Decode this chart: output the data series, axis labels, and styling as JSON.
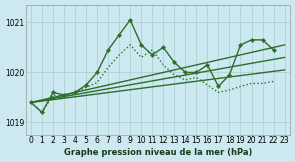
{
  "title": "Graphe pression niveau de la mer (hPa)",
  "background_color": "#cce8f0",
  "grid_color": "#aacccc",
  "line_color": "#2d6e2d",
  "ylim": [
    1018.75,
    1021.35
  ],
  "yticks": [
    1019,
    1020,
    1021
  ],
  "xlim": [
    -0.5,
    23.5
  ],
  "xticks": [
    0,
    1,
    2,
    3,
    4,
    5,
    6,
    7,
    8,
    9,
    10,
    11,
    12,
    13,
    14,
    15,
    16,
    17,
    18,
    19,
    20,
    21,
    22,
    23
  ],
  "main_x": [
    0,
    1,
    2,
    3,
    4,
    5,
    6,
    7,
    8,
    9,
    10,
    11,
    12,
    13,
    14,
    15,
    16,
    17,
    18,
    19,
    20,
    21,
    22
  ],
  "main_y": [
    1019.4,
    1019.2,
    1019.6,
    1019.55,
    1019.6,
    1019.75,
    1020.0,
    1020.45,
    1020.75,
    1021.05,
    1020.55,
    1020.35,
    1020.5,
    1020.2,
    1020.0,
    1020.0,
    1020.15,
    1019.72,
    1019.95,
    1020.55,
    1020.65,
    1020.65,
    1020.45
  ],
  "dotted_x": [
    0,
    1,
    2,
    3,
    4,
    5,
    6,
    7,
    8,
    9,
    10,
    11,
    12,
    13,
    14,
    15,
    16,
    17,
    18,
    19,
    20,
    21,
    22
  ],
  "dotted_y": [
    1019.4,
    1019.2,
    1019.55,
    1019.5,
    1019.6,
    1019.7,
    1019.8,
    1020.1,
    1020.35,
    1020.55,
    1020.3,
    1020.45,
    1020.15,
    1019.95,
    1019.85,
    1019.9,
    1019.75,
    1019.6,
    1019.65,
    1019.72,
    1019.78,
    1019.78,
    1019.82
  ],
  "line1_y": [
    1019.4,
    1020.55
  ],
  "line2_y": [
    1019.4,
    1020.3
  ],
  "line3_y": [
    1019.4,
    1020.05
  ],
  "xlabel_fontsize": 6.0,
  "tick_fontsize": 5.5,
  "linewidth": 1.0,
  "marker_size": 2.2
}
